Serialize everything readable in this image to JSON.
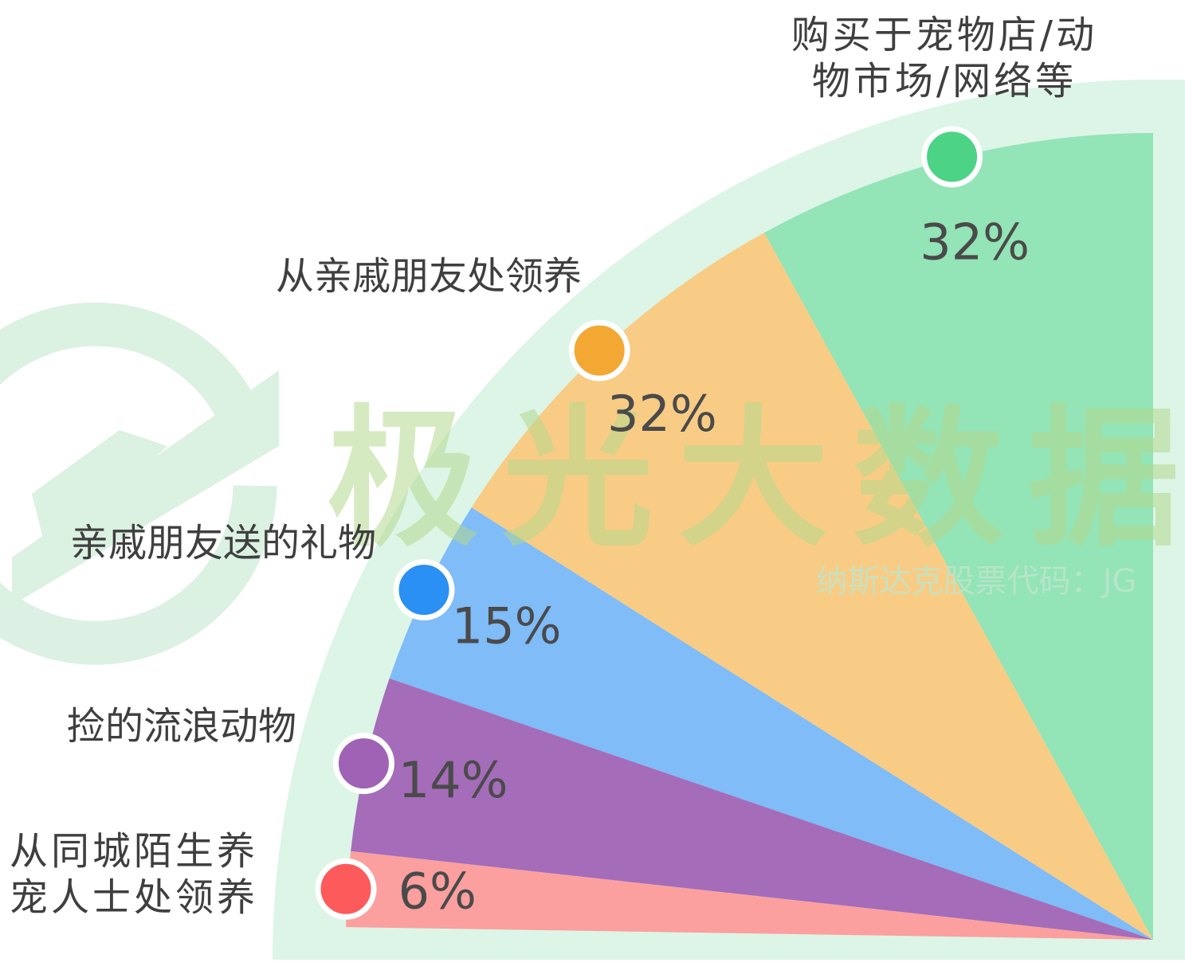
{
  "chart_data": {
    "type": "pie",
    "categories": [
      "购买于宠物店/动物市场/网络等",
      "从亲戚朋友处领养",
      "亲戚朋友送的礼物",
      "捡的流浪动物",
      "从同城陌生养宠人士处领养"
    ],
    "values": [
      32,
      32,
      15,
      14,
      6
    ],
    "value_labels": [
      "32%",
      "32%",
      "15%",
      "14%",
      "6%"
    ],
    "colors": [
      "#93e4b6",
      "#f8cc85",
      "#7fbcf8",
      "#a56cba",
      "#fc9f9f"
    ],
    "marker_colors": [
      "#4cd386",
      "#f2a833",
      "#2a90f3",
      "#a062b5",
      "#fd5a5c"
    ]
  },
  "watermark": {
    "title": "极光大数据",
    "subtitle": "纳斯达克股票代码：JG"
  }
}
